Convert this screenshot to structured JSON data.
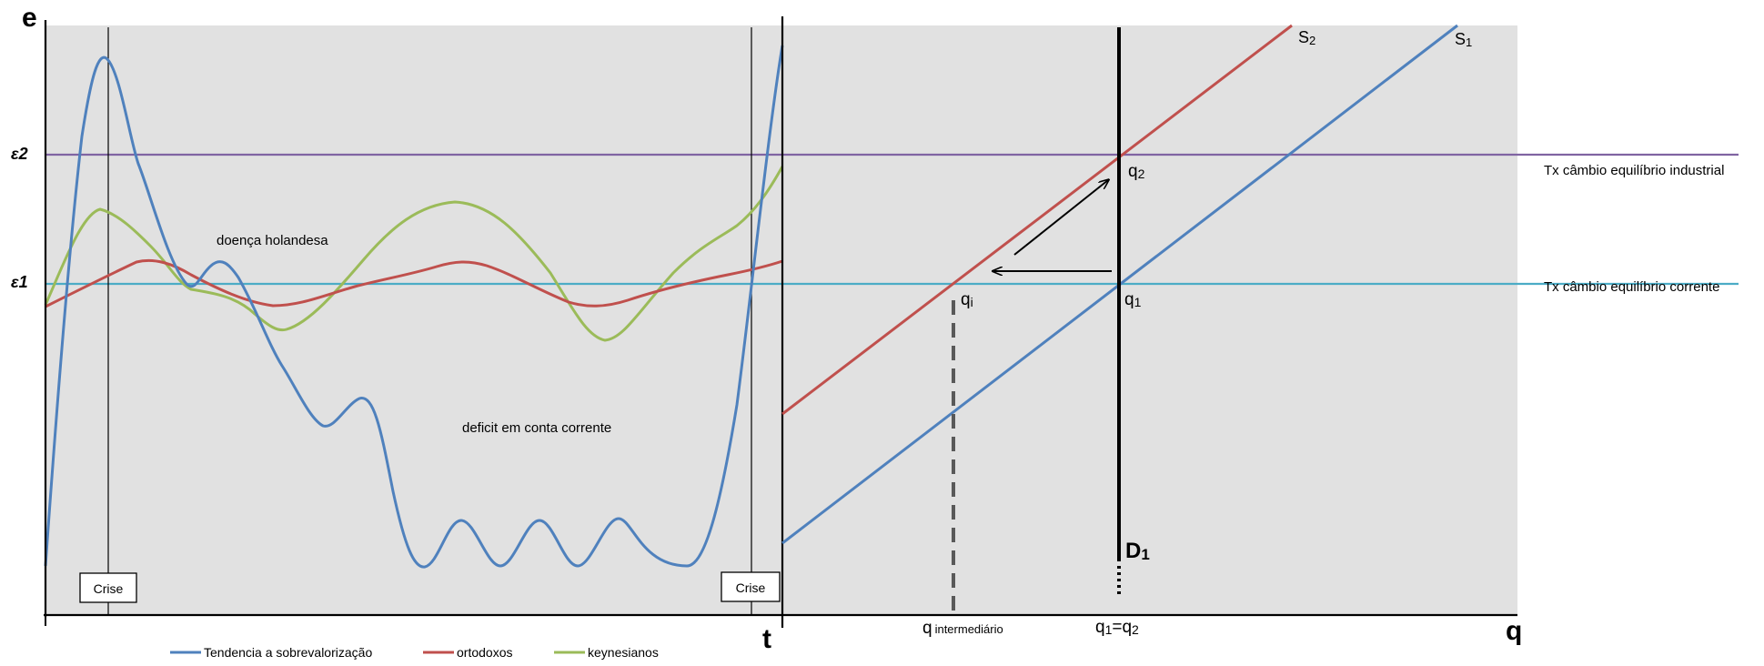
{
  "left_panel": {
    "y_axis_label": "e",
    "x_axis_label": "t",
    "epsilon2_label": "ε2",
    "epsilon1_label": "ε1",
    "annotation_dutch_disease": "doença holandesa",
    "annotation_deficit": "deficit em conta corrente",
    "crise_left": "Crise",
    "crise_right": "Crise"
  },
  "right_panel": {
    "x_axis_label": "q",
    "s2_label_main": "S",
    "s2_label_sub": "2",
    "s1_label_main": "S",
    "s1_label_sub": "1",
    "d1_label_main": "D",
    "d1_label_sub": "1",
    "q2_main": "q",
    "q2_sub": "2",
    "q1_main": "q",
    "q1_sub": "1",
    "qi_main": "q",
    "qi_sub": "i",
    "q_intermediario_main": "q",
    "q_intermediario_sub": "intermediário",
    "q1_eq_q2_a": "q",
    "q1_eq_q2_a_sub": "1",
    "q1_eq_q2_eq": "=q",
    "q1_eq_q2_b_sub": "2",
    "tx_industrial": "Tx câmbio equilíbrio industrial",
    "tx_corrente": "Tx câmbio equilíbrio corrente"
  },
  "legend": {
    "items": [
      {
        "label": "Tendencia a sobrevalorização",
        "color": "#4f81bd"
      },
      {
        "label": "ortodoxos",
        "color": "#c0504d"
      },
      {
        "label": "keynesianos",
        "color": "#9bbb59"
      }
    ]
  },
  "colors": {
    "panel_bg": "#e1e1e1",
    "blue": "#4f81bd",
    "red": "#c0504d",
    "green": "#9bbb59",
    "purple": "#8064a2",
    "cyan": "#4bacc6"
  }
}
